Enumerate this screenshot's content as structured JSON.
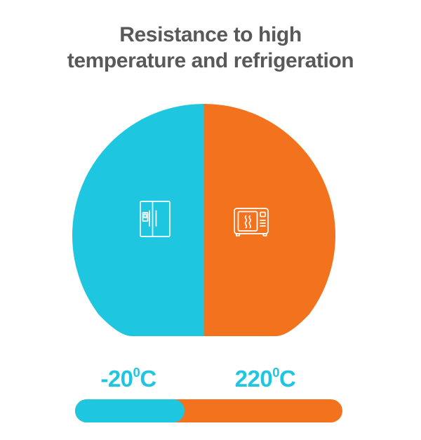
{
  "title": {
    "line1": "Resistance to high",
    "line2": "temperature and refrigeration"
  },
  "colors": {
    "cold": "#1fc6e0",
    "hot": "#f3721d",
    "title": "#595959",
    "icon_stroke": "#ffffff"
  },
  "cold": {
    "temp_value": "-20",
    "temp_sup": "0",
    "temp_unit": "C",
    "icon": "refrigerator-icon",
    "meaning": "refrigeration"
  },
  "hot": {
    "temp_value": "220",
    "temp_sup": "0",
    "temp_unit": "C",
    "icon": "microwave-icon",
    "meaning": "high temperature"
  },
  "scale_bar": {
    "cold_fraction": 0.41,
    "hot_fraction": 0.59
  }
}
